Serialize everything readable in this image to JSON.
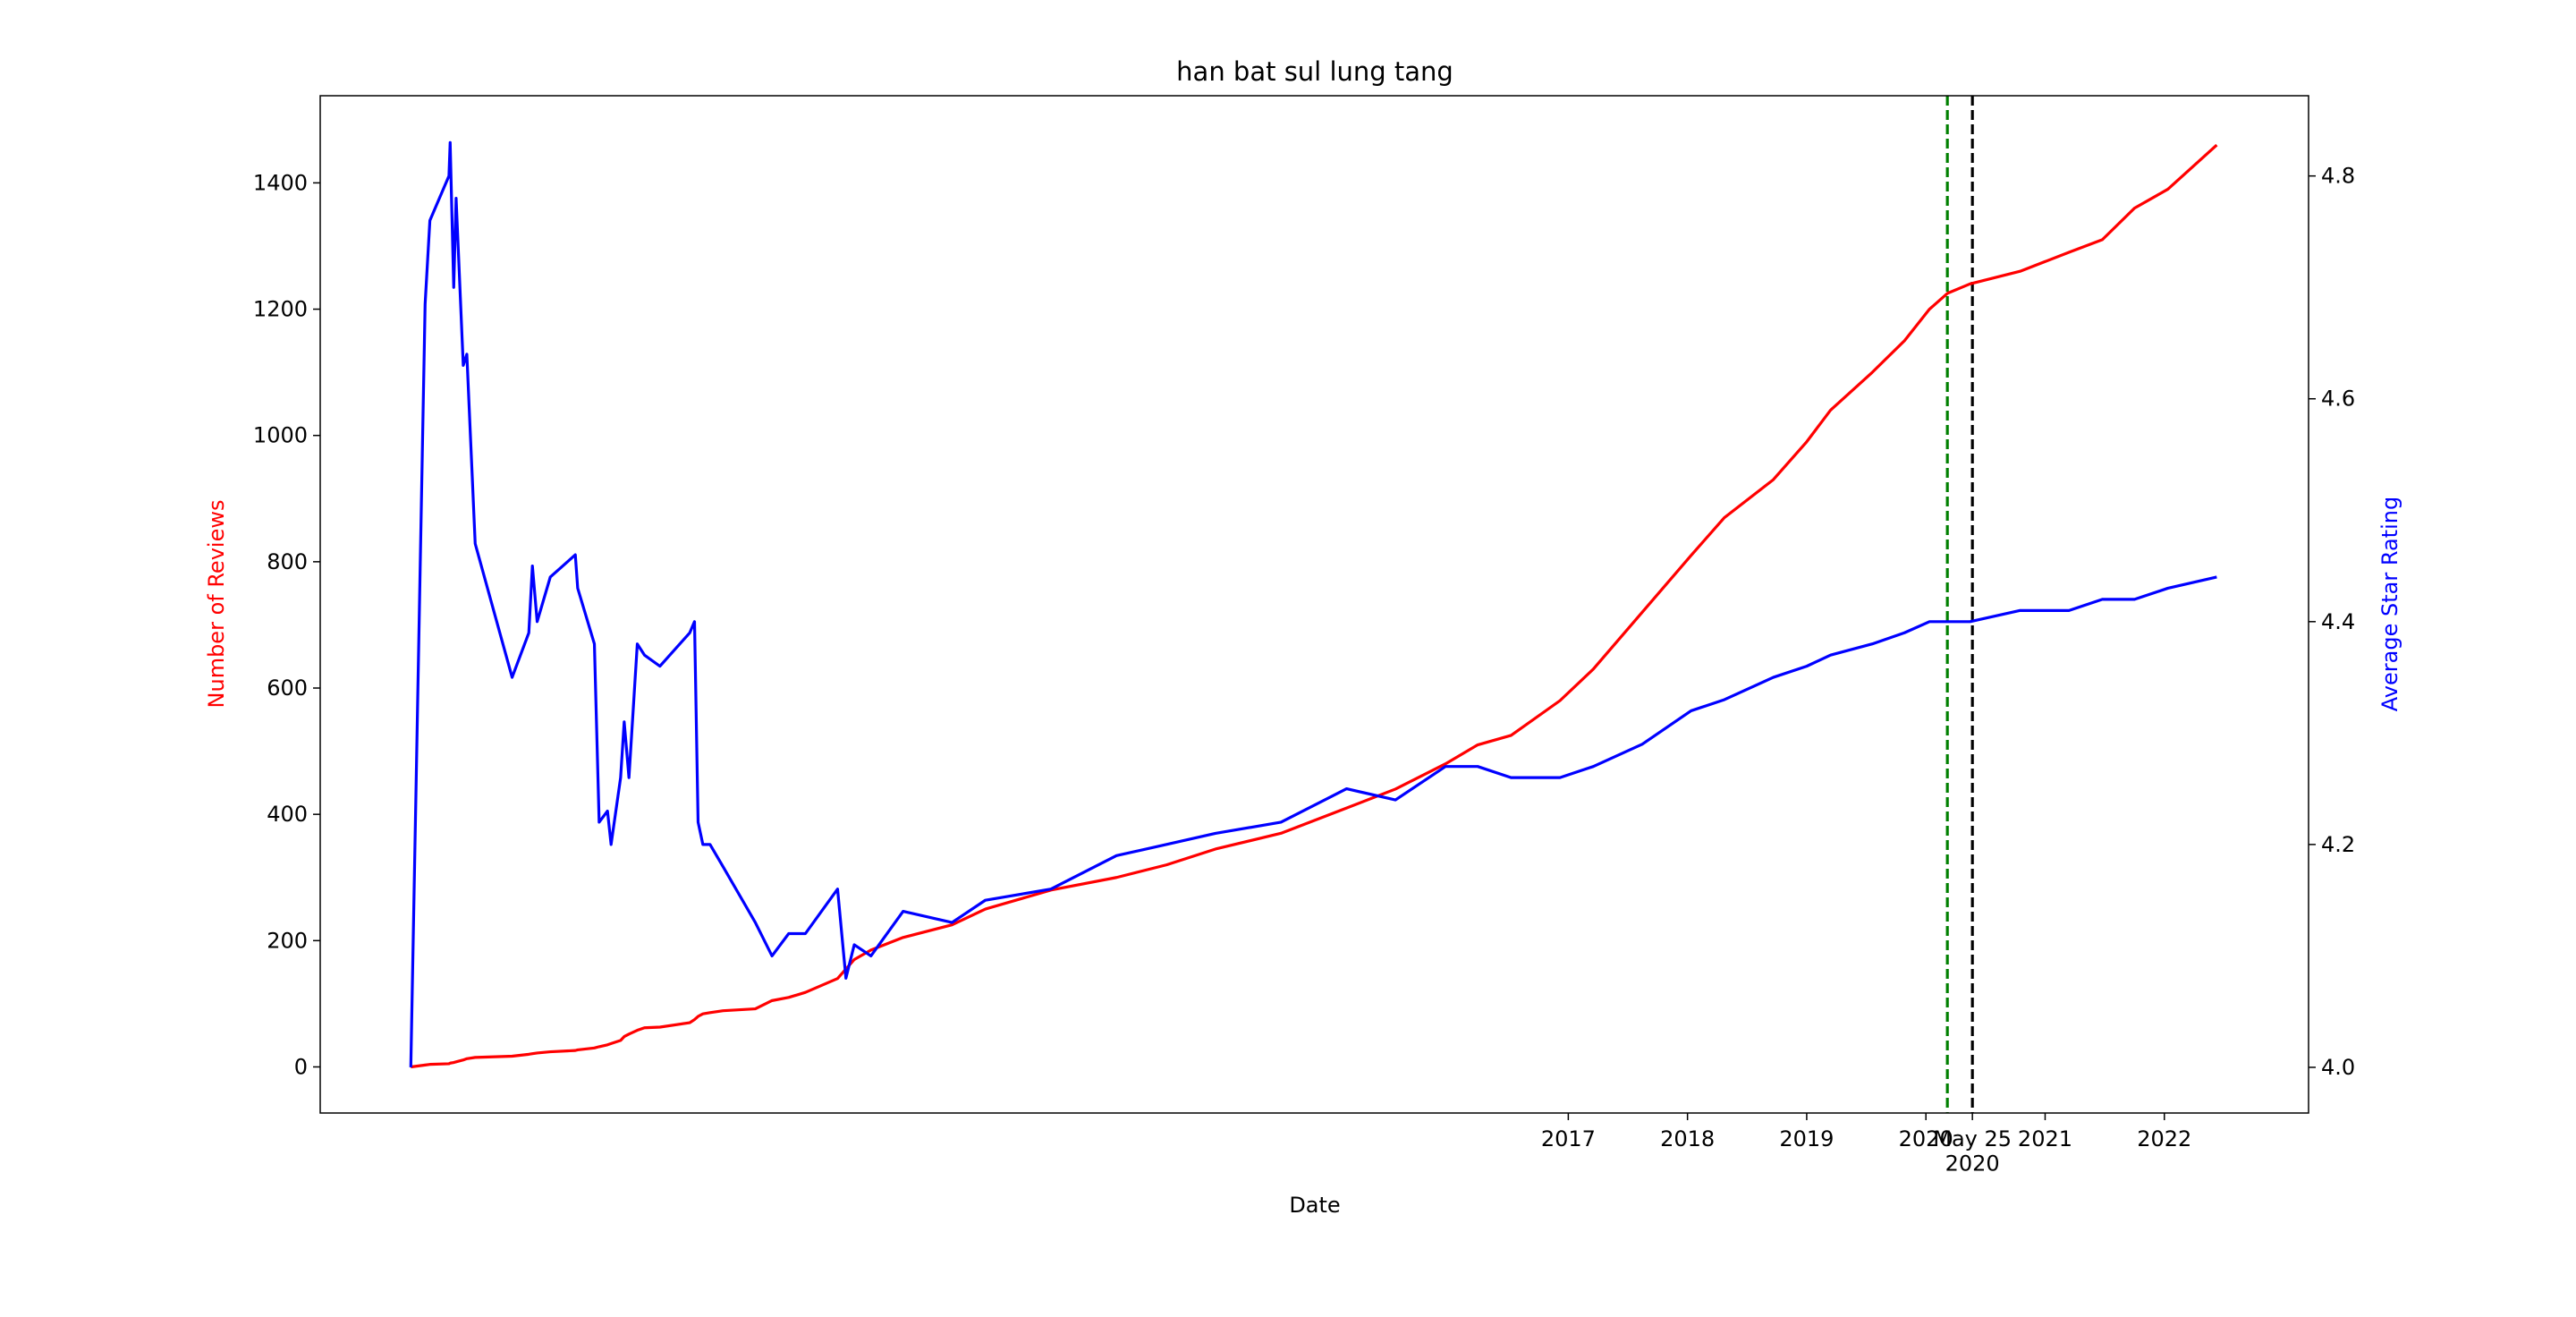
{
  "chart_data": {
    "type": "line",
    "title": "han bat sul lung tang",
    "xlabel": "Date",
    "ylabel": "Number of Reviews",
    "y2label": "Average Star Rating",
    "x": [
      2007.29,
      2007.41,
      2007.45,
      2007.61,
      2007.62,
      2007.65,
      2007.67,
      2007.73,
      2007.76,
      2007.83,
      2008.14,
      2008.28,
      2008.31,
      2008.35,
      2008.46,
      2008.67,
      2008.69,
      2008.83,
      2008.87,
      2008.94,
      2008.97,
      2009.05,
      2009.08,
      2009.12,
      2009.19,
      2009.25,
      2009.38,
      2009.63,
      2009.67,
      2009.7,
      2009.74,
      2009.8,
      2009.91,
      2010.18,
      2010.32,
      2010.46,
      2010.6,
      2010.87,
      2010.94,
      2011.01,
      2011.15,
      2011.42,
      2011.83,
      2012.11,
      2012.66,
      2013.21,
      2013.63,
      2014.04,
      2014.59,
      2015.14,
      2015.55,
      2015.97,
      2016.24,
      2016.52,
      2016.93,
      2017.21,
      2017.62,
      2018.03,
      2018.31,
      2018.72,
      2019.0,
      2019.2,
      2019.55,
      2019.82,
      2020.03,
      2020.18,
      2020.37,
      2020.79,
      2021.2,
      2021.48,
      2021.75,
      2022.03,
      2022.44
    ],
    "series": [
      {
        "name": "Number of Reviews",
        "color": "#ff0000",
        "values": [
          0,
          3,
          4,
          5,
          6,
          7,
          8,
          11,
          13,
          15,
          17,
          20,
          21,
          22,
          24,
          26,
          27,
          30,
          32,
          35,
          37,
          42,
          48,
          52,
          58,
          62,
          63,
          70,
          75,
          80,
          84,
          86,
          89,
          92,
          105,
          110,
          118,
          140,
          155,
          170,
          185,
          205,
          225,
          250,
          280,
          300,
          320,
          345,
          370,
          410,
          440,
          480,
          510,
          525,
          580,
          630,
          720,
          810,
          870,
          930,
          990,
          1040,
          1100,
          1150,
          1200,
          1225,
          1240,
          1260,
          1290,
          1310,
          1360,
          1390,
          1460
        ]
      },
      {
        "name": "Average Star Rating",
        "color": "#0000ff",
        "axis": "y2",
        "values": [
          4.0,
          4.685,
          4.76,
          4.8,
          4.83,
          4.7,
          4.78,
          4.63,
          4.64,
          4.47,
          4.35,
          4.39,
          4.45,
          4.4,
          4.44,
          4.46,
          4.43,
          4.38,
          4.22,
          4.23,
          4.2,
          4.26,
          4.31,
          4.26,
          4.38,
          4.37,
          4.36,
          4.39,
          4.4,
          4.22,
          4.2,
          4.2,
          4.18,
          4.13,
          4.1,
          4.12,
          4.12,
          4.16,
          4.08,
          4.11,
          4.1,
          4.14,
          4.13,
          4.15,
          4.16,
          4.19,
          4.2,
          4.21,
          4.22,
          4.25,
          4.24,
          4.27,
          4.27,
          4.26,
          4.26,
          4.27,
          4.29,
          4.32,
          4.33,
          4.35,
          4.36,
          4.37,
          4.38,
          4.39,
          4.4,
          4.4,
          4.4,
          4.41,
          4.41,
          4.42,
          4.42,
          4.43,
          4.44
        ]
      }
    ],
    "xlim": [
      2006.53,
      2023.21
    ],
    "xticks": [
      2017,
      2018,
      2019,
      2020,
      {
        "value": 2020.39,
        "label": "May 25\n2020"
      },
      2021,
      2022
    ],
    "ylim": [
      -73,
      1538
    ],
    "yticks": [
      0,
      200,
      400,
      600,
      800,
      1000,
      1200,
      1400
    ],
    "y2lim": [
      3.959,
      4.872
    ],
    "y2ticks": [
      {
        "value": 4,
        "label": "4.0"
      },
      4.2,
      4.4,
      4.6,
      4.8
    ],
    "vlines": [
      {
        "x": 2020.18,
        "color": "#008000"
      },
      {
        "x": 2020.39,
        "color": "#000000"
      }
    ]
  }
}
